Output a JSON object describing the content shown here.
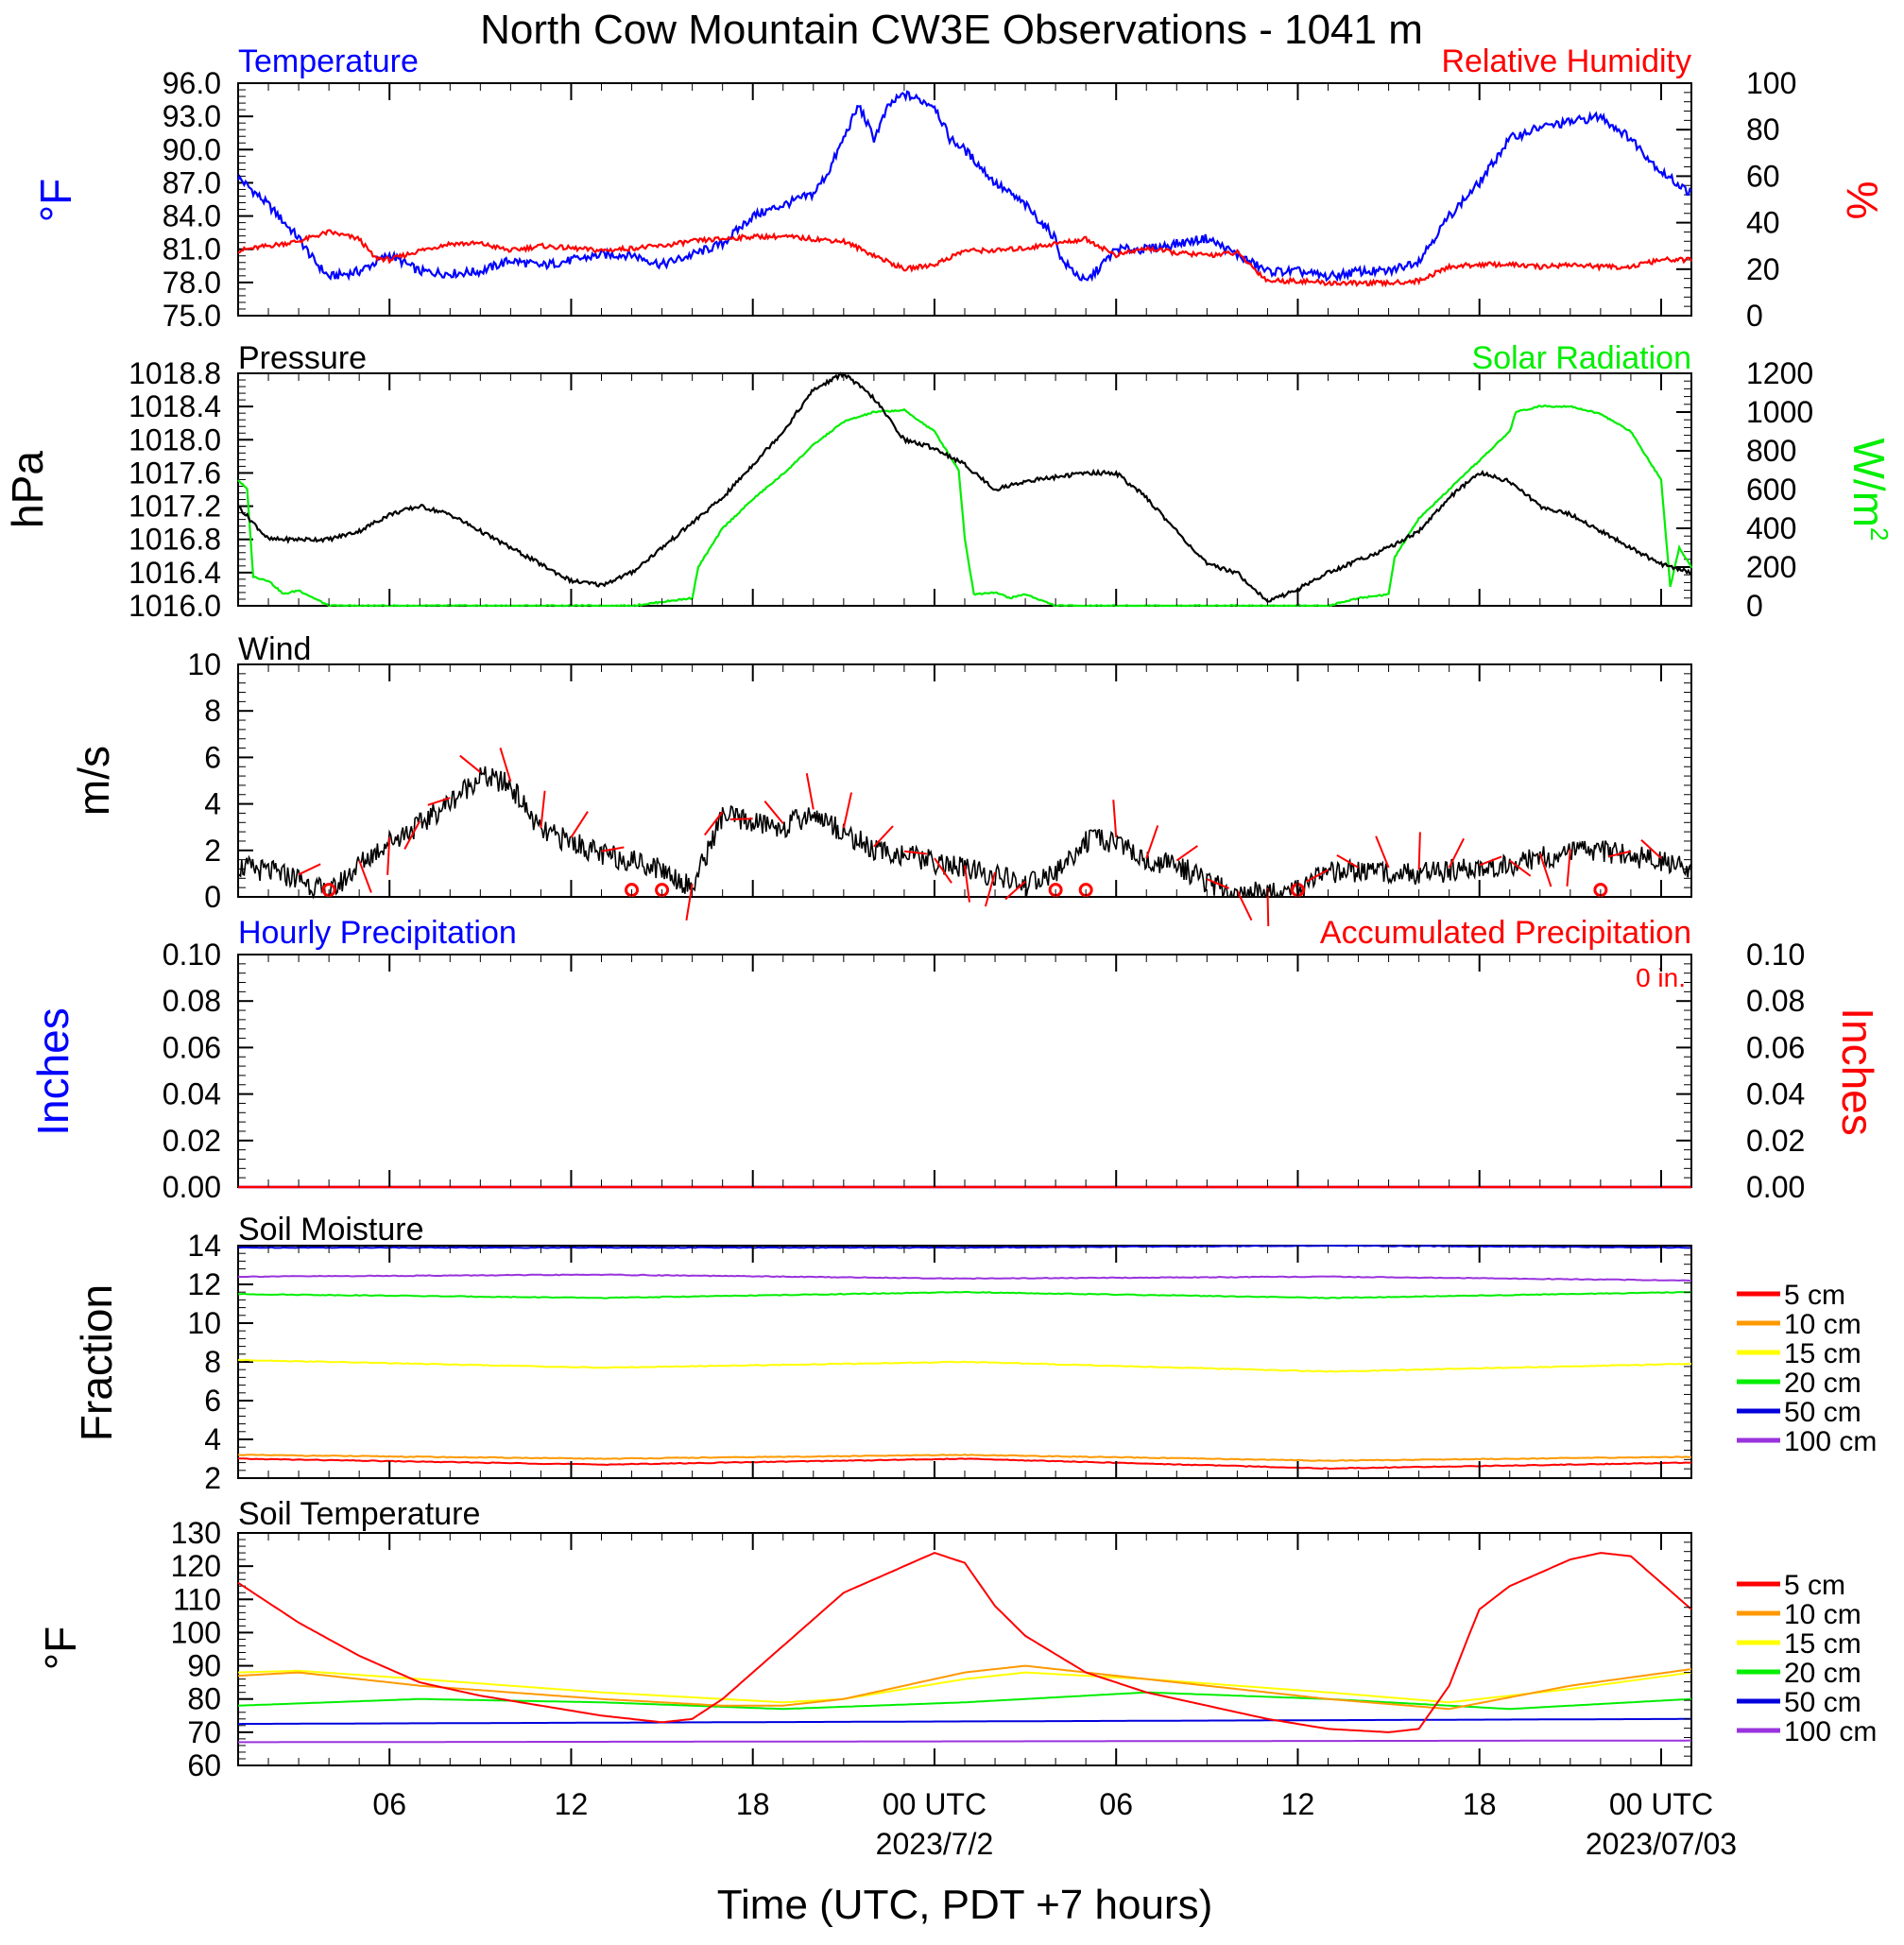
{
  "title": "North Cow Mountain CW3E Observations - 1041 m",
  "x_axis": {
    "label": "Time (UTC, PDT +7 hours)",
    "range_hours": [
      0,
      48
    ],
    "tick_labels": [
      {
        "hour": 5,
        "text": "06"
      },
      {
        "hour": 11,
        "text": "12"
      },
      {
        "hour": 17,
        "text": "18"
      },
      {
        "hour": 23,
        "text": "00 UTC",
        "sub": "2023/7/2"
      },
      {
        "hour": 29,
        "text": "06"
      },
      {
        "hour": 35,
        "text": "12"
      },
      {
        "hour": 41,
        "text": "18"
      },
      {
        "hour": 47,
        "text": "00 UTC",
        "sub": "2023/07/03"
      }
    ]
  },
  "panels": {
    "temp": {
      "left_title": "Temperature",
      "right_title": "Relative Humidity",
      "left_units": "°F",
      "right_units": "%",
      "left_ticks": [
        "96.0",
        "93.0",
        "90.0",
        "87.0",
        "84.0",
        "81.0",
        "78.0",
        "75.0"
      ],
      "right_ticks": [
        "100",
        "80",
        "60",
        "40",
        "20",
        "0"
      ]
    },
    "pressure": {
      "left_title": "Pressure",
      "right_title": "Solar Radiation",
      "left_units": "hPa",
      "right_units": "W/m",
      "right_units_sup": "2",
      "left_ticks": [
        "1018.8",
        "1018.4",
        "1018.0",
        "1017.6",
        "1017.2",
        "1016.8",
        "1016.4",
        "1016.0"
      ],
      "right_ticks": [
        "1200",
        "1000",
        "800",
        "600",
        "400",
        "200",
        "0"
      ]
    },
    "wind": {
      "left_title": "Wind",
      "left_units": "m/s",
      "left_ticks": [
        "10",
        "8",
        "6",
        "4",
        "2",
        "0"
      ]
    },
    "precip": {
      "left_title": "Hourly Precipitation",
      "right_title": "Accumulated Precipitation",
      "total_text": "0 in.",
      "left_units": "Inches",
      "right_units": "Inches",
      "left_ticks": [
        "0.10",
        "0.08",
        "0.06",
        "0.04",
        "0.02",
        "0.00"
      ],
      "right_ticks": [
        "0.10",
        "0.08",
        "0.06",
        "0.04",
        "0.02",
        "0.00"
      ]
    },
    "soil_moisture": {
      "left_title": "Soil Moisture",
      "left_units": "Fraction",
      "left_ticks": [
        "14",
        "12",
        "10",
        "8",
        "6",
        "4",
        "2"
      ]
    },
    "soil_temp": {
      "left_title": "Soil Temperature",
      "left_units": "°F",
      "left_ticks": [
        "130",
        "120",
        "110",
        "100",
        "90",
        "80",
        "70",
        "60"
      ]
    }
  },
  "legend_depths": [
    "5 cm",
    "10 cm",
    "15 cm",
    "20 cm",
    "50 cm",
    "100 cm"
  ],
  "colors": {
    "temperature": "#0000ff",
    "humidity": "#ff0000",
    "pressure": "#000000",
    "solar": "#00ee00",
    "wind": "#000000",
    "barbs": "#ff0000",
    "depth_5": "#ff0000",
    "depth_10": "#ff9900",
    "depth_15": "#ffff00",
    "depth_20": "#00ee00",
    "depth_50": "#0000dd",
    "depth_100": "#9933dd"
  },
  "chart_data": [
    {
      "type": "line",
      "title": "Temperature",
      "ylabel": "°F",
      "ylim": [
        75,
        96
      ],
      "x_units": "hours since 2023-07-01 01 UTC",
      "series": [
        {
          "name": "Temperature",
          "x": [
            0,
            1,
            2,
            2.5,
            3,
            4,
            5,
            6,
            7,
            8,
            9,
            10,
            11,
            12,
            13,
            14,
            15,
            16,
            17,
            18,
            19,
            19.5,
            20,
            20.5,
            21,
            21.5,
            22,
            23,
            23.5,
            24,
            25,
            26,
            27,
            27.2,
            28,
            29,
            30,
            31,
            32,
            33,
            34,
            35,
            36,
            37,
            38,
            39,
            40,
            41,
            42,
            43,
            44,
            45,
            46,
            47,
            48
          ],
          "y": [
            87.5,
            85,
            82,
            80,
            78.5,
            79,
            80.5,
            79,
            78.8,
            79,
            80,
            79.5,
            80,
            80.5,
            80.5,
            79.6,
            80.5,
            81.5,
            84,
            85,
            86,
            88,
            91,
            94,
            91,
            94,
            95,
            94,
            91,
            90,
            87,
            85,
            82,
            80,
            78,
            81,
            81,
            81.5,
            82,
            80.5,
            79,
            79,
            78.5,
            79,
            79,
            80,
            84,
            87,
            91,
            92,
            92.5,
            93,
            91,
            88,
            86
          ]
        },
        {
          "name": "Relative Humidity",
          "axis": "right",
          "ylim": [
            0,
            100
          ],
          "x": [
            0,
            1,
            2,
            3,
            4,
            4.5,
            5,
            6,
            7,
            8,
            9,
            10,
            11,
            12,
            13,
            14,
            15,
            16,
            17,
            18,
            19,
            20,
            21,
            22,
            23,
            24,
            25,
            26,
            27,
            28,
            29,
            30,
            31,
            32,
            33,
            34,
            35,
            36,
            37,
            38,
            39,
            40,
            41,
            42,
            43,
            44,
            45,
            46,
            47,
            48
          ],
          "y": [
            28,
            30,
            32,
            36,
            33,
            25,
            24,
            28,
            31,
            31,
            28,
            30,
            29,
            28,
            29,
            30,
            32,
            33,
            34,
            34,
            33,
            32,
            26,
            20,
            22,
            28,
            28,
            29,
            31,
            33,
            26,
            29,
            27,
            26,
            27,
            15,
            15,
            14,
            14,
            14,
            15,
            21,
            22,
            22,
            21,
            22,
            21,
            21,
            24,
            24
          ]
        }
      ]
    },
    {
      "type": "line",
      "title": "Pressure",
      "ylabel": "hPa",
      "ylim": [
        1016.0,
        1018.8
      ],
      "x_units": "hours since 2023-07-01 01 UTC",
      "series": [
        {
          "name": "Pressure",
          "x": [
            0,
            1,
            2,
            3,
            4,
            5,
            6,
            7,
            8,
            9,
            10,
            11,
            12,
            13,
            14,
            15,
            16,
            17,
            18,
            19,
            20,
            21,
            22,
            23,
            24,
            25,
            26,
            27,
            28,
            29,
            30,
            31,
            32,
            33,
            34,
            35,
            36,
            37,
            38,
            39,
            40,
            41,
            42,
            43,
            44,
            45,
            46,
            47,
            48
          ],
          "y": [
            1017.2,
            1016.8,
            1016.8,
            1016.8,
            1016.9,
            1017.1,
            1017.2,
            1017.1,
            1016.9,
            1016.7,
            1016.5,
            1016.3,
            1016.25,
            1016.4,
            1016.7,
            1017.0,
            1017.3,
            1017.7,
            1018.1,
            1018.6,
            1018.8,
            1018.5,
            1018.0,
            1017.9,
            1017.7,
            1017.4,
            1017.5,
            1017.55,
            1017.6,
            1017.6,
            1017.3,
            1016.9,
            1016.5,
            1016.4,
            1016.05,
            1016.2,
            1016.4,
            1016.55,
            1016.7,
            1016.9,
            1017.3,
            1017.6,
            1017.5,
            1017.2,
            1017.1,
            1016.9,
            1016.7,
            1016.5,
            1016.4
          ]
        },
        {
          "name": "Solar Radiation",
          "axis": "right",
          "ylim": [
            0,
            1200
          ],
          "x": [
            0,
            0.3,
            0.5,
            1,
            1.5,
            2,
            3,
            4,
            5,
            11,
            12,
            13,
            14,
            15,
            15.2,
            16,
            17,
            18,
            19,
            20,
            21,
            22,
            23,
            23.8,
            24,
            24.3,
            25,
            25.5,
            26,
            27,
            27.5,
            28,
            35,
            36,
            37,
            38,
            38.2,
            39,
            40,
            41,
            42,
            42.2,
            43,
            44,
            45,
            46,
            47,
            47.3,
            47.6,
            48
          ],
          "y": [
            650,
            600,
            150,
            130,
            60,
            80,
            0,
            0,
            0,
            0,
            0,
            0,
            20,
            40,
            200,
            400,
            550,
            680,
            830,
            950,
            1000,
            1010,
            900,
            700,
            350,
            60,
            70,
            40,
            60,
            0,
            0,
            0,
            0,
            0,
            40,
            60,
            250,
            450,
            600,
            750,
            900,
            1000,
            1030,
            1030,
            990,
            900,
            650,
            100,
            300,
            200
          ]
        }
      ]
    },
    {
      "type": "line",
      "title": "Wind",
      "ylabel": "m/s",
      "ylim": [
        0,
        10
      ],
      "x_units": "hours since 2023-07-01 01 UTC",
      "series": [
        {
          "name": "Wind speed",
          "x": [
            0,
            1,
            2,
            3,
            4,
            5,
            6,
            7,
            8,
            9,
            10,
            11,
            12,
            13,
            14,
            15,
            16,
            17,
            18,
            19,
            20,
            21,
            22,
            23,
            24,
            25,
            26,
            27,
            28,
            29,
            30,
            31,
            32,
            33,
            34,
            35,
            36,
            37,
            38,
            39,
            40,
            41,
            42,
            43,
            44,
            45,
            46,
            47,
            48
          ],
          "y": [
            1.3,
            1.1,
            0.8,
            0.1,
            1.4,
            2.4,
            3.1,
            4.1,
            5.2,
            4.8,
            2.8,
            2.4,
            1.8,
            1.6,
            1.2,
            0.4,
            3.5,
            3.2,
            3.0,
            3.6,
            2.8,
            2.0,
            1.8,
            1.5,
            1.2,
            0.9,
            0.5,
            1.0,
            2.4,
            2.4,
            1.5,
            1.4,
            0.6,
            0.1,
            0.2,
            0.3,
            1.0,
            1.1,
            1.1,
            1.0,
            1.1,
            1.2,
            1.4,
            1.7,
            1.9,
            2.0,
            1.8,
            1.5,
            1.2
          ]
        }
      ],
      "calm_hours": [
        3,
        13,
        14,
        27,
        28,
        35,
        45
      ]
    },
    {
      "type": "line",
      "title": "Hourly Precipitation",
      "ylabel": "Inches",
      "ylim": [
        0,
        0.1
      ],
      "series": [
        {
          "name": "Hourly Precipitation",
          "x": [
            0,
            48
          ],
          "y": [
            0,
            0
          ]
        },
        {
          "name": "Accumulated Precipitation",
          "x": [
            0,
            48
          ],
          "y": [
            0,
            0
          ]
        }
      ]
    },
    {
      "type": "line",
      "title": "Soil Moisture",
      "ylabel": "Fraction",
      "ylim": [
        2,
        14
      ],
      "series": [
        {
          "name": "5 cm",
          "x": [
            0,
            12,
            24,
            36,
            48
          ],
          "y": [
            3.0,
            2.7,
            3.0,
            2.5,
            2.8
          ]
        },
        {
          "name": "10 cm",
          "x": [
            0,
            12,
            24,
            36,
            48
          ],
          "y": [
            3.2,
            3.0,
            3.2,
            2.9,
            3.1
          ]
        },
        {
          "name": "15 cm",
          "x": [
            0,
            12,
            24,
            36,
            48
          ],
          "y": [
            8.1,
            7.7,
            8.0,
            7.5,
            7.9
          ]
        },
        {
          "name": "20 cm",
          "x": [
            0,
            12,
            24,
            36,
            48
          ],
          "y": [
            11.5,
            11.3,
            11.6,
            11.3,
            11.6
          ]
        },
        {
          "name": "50 cm",
          "x": [
            0,
            12,
            24,
            36,
            48
          ],
          "y": [
            13.9,
            13.9,
            13.9,
            14.0,
            13.9
          ]
        },
        {
          "name": "100 cm",
          "x": [
            0,
            12,
            24,
            36,
            48
          ],
          "y": [
            12.4,
            12.5,
            12.3,
            12.4,
            12.2
          ]
        }
      ]
    },
    {
      "type": "line",
      "title": "Soil Temperature",
      "ylabel": "°F",
      "ylim": [
        60,
        130
      ],
      "series": [
        {
          "name": "5 cm",
          "x": [
            0,
            2,
            4,
            6,
            8,
            10,
            12,
            14,
            15,
            16,
            18,
            20,
            22,
            23,
            24,
            25,
            26,
            28,
            30,
            32,
            34,
            36,
            38,
            39,
            40,
            40.6,
            41,
            42,
            44,
            45,
            46,
            47,
            48
          ],
          "y": [
            115,
            103,
            93,
            85,
            81,
            78,
            75,
            73,
            74,
            80,
            96,
            112,
            120,
            124,
            121,
            108,
            99,
            88,
            82,
            78,
            74,
            71,
            70,
            71,
            84,
            98,
            107,
            114,
            122,
            124,
            123,
            115,
            107
          ]
        },
        {
          "name": "10 cm",
          "x": [
            0,
            2,
            6,
            12,
            16,
            18,
            20,
            22,
            24,
            26,
            30,
            36,
            40,
            44,
            48
          ],
          "y": [
            87,
            88,
            84,
            80,
            78,
            78,
            80,
            84,
            88,
            90,
            86,
            80,
            77,
            84,
            89
          ]
        },
        {
          "name": "15 cm",
          "x": [
            0,
            2,
            6,
            12,
            16,
            18,
            20,
            22,
            24,
            26,
            30,
            36,
            40,
            44,
            48
          ],
          "y": [
            88,
            88.5,
            86,
            82,
            80,
            79,
            80,
            83,
            86,
            88,
            86,
            82,
            79,
            83,
            88
          ]
        },
        {
          "name": "20 cm",
          "x": [
            0,
            6,
            12,
            18,
            24,
            30,
            36,
            42,
            48
          ],
          "y": [
            78,
            80,
            79,
            77,
            79,
            82,
            80,
            77,
            80
          ]
        },
        {
          "name": "50 cm",
          "x": [
            0,
            48
          ],
          "y": [
            72.5,
            74
          ]
        },
        {
          "name": "100 cm",
          "x": [
            0,
            48
          ],
          "y": [
            67,
            67.5
          ]
        }
      ]
    }
  ]
}
